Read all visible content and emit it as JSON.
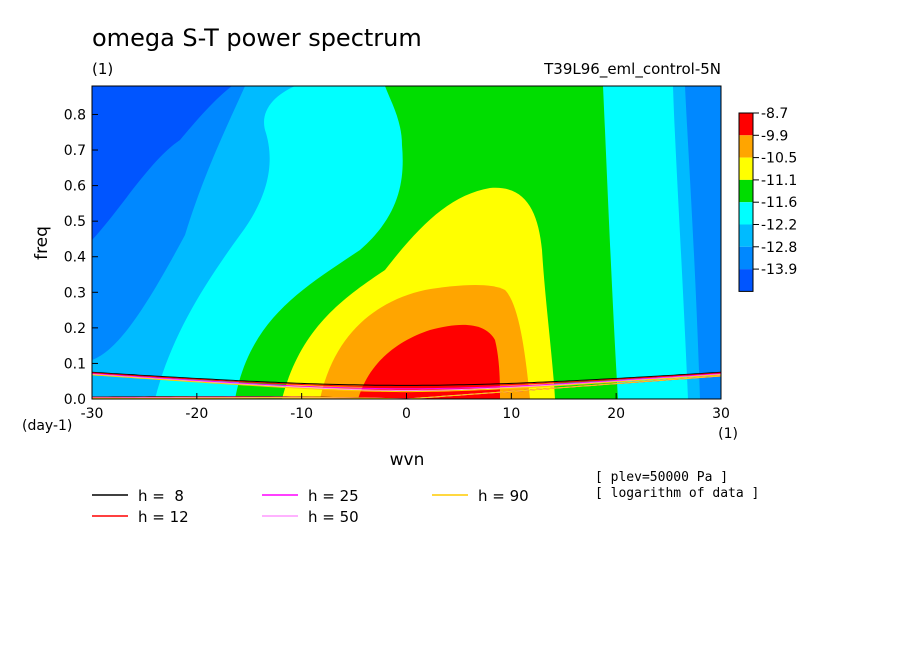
{
  "chart_data": {
    "type": "heatmap",
    "title": "omega S-T power spectrum",
    "title_unit": "(1)",
    "subtitle_right": "T39L96_eml_control-5N",
    "xlabel": "wvn",
    "ylabel": "freq",
    "x_unit": "(1)",
    "y_unit": "(day-1)",
    "xlim": [
      -30,
      30
    ],
    "ylim": [
      0,
      0.88
    ],
    "x_ticks": [
      "-30",
      "-20",
      "-10",
      "0",
      "10",
      "20",
      "30"
    ],
    "x_tick_values": [
      -30,
      -20,
      -10,
      0,
      10,
      20,
      30
    ],
    "y_ticks": [
      "0.0",
      "0.1",
      "0.2",
      "0.3",
      "0.4",
      "0.5",
      "0.6",
      "0.7",
      "0.8"
    ],
    "y_tick_values": [
      0,
      0.1,
      0.2,
      0.3,
      0.4,
      0.5,
      0.6,
      0.7,
      0.8
    ],
    "colorbar": {
      "labels": [
        "-8.7",
        "-9.9",
        "-10.5",
        "-11.1",
        "-11.6",
        "-12.2",
        "-12.8",
        "-13.9"
      ],
      "colors": [
        "#ff0000",
        "#ffa500",
        "#ffff00",
        "#00dd00",
        "#00ffff",
        "#00bbff",
        "#0088ff",
        "#0055ff"
      ]
    },
    "notes": [
      "[ plev=50000 Pa ]",
      "[ logarithm of data ]"
    ],
    "dispersion_curves": [
      {
        "label": "h =  8",
        "h": 8,
        "color": "#000000"
      },
      {
        "label": "h = 12",
        "h": 12,
        "color": "#ff0000"
      },
      {
        "label": "h = 25",
        "h": 25,
        "color": "#ff00ff"
      },
      {
        "label": "h = 50",
        "h": 50,
        "color": "#ff99ff"
      },
      {
        "label": "h = 90",
        "h": 90,
        "color": "#ffcc00"
      }
    ]
  }
}
